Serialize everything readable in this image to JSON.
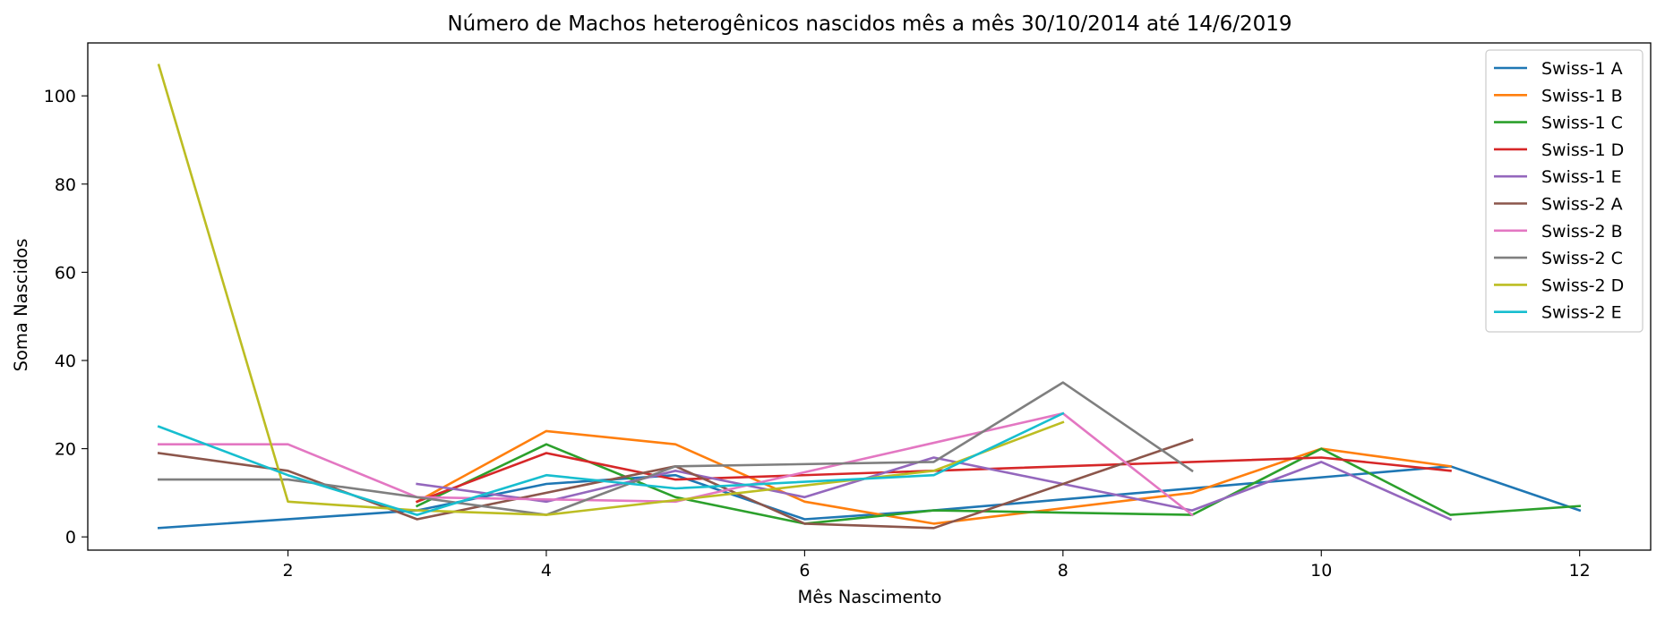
{
  "chart_data": {
    "type": "line",
    "title": "Número de Machos heterogênicos nascidos mês a mês 30/10/2014 até 14/6/2019",
    "xlabel": "Mês Nascimento",
    "ylabel": "Soma Nascidos",
    "xlim": [
      0.45,
      12.55
    ],
    "ylim": [
      -3,
      112
    ],
    "xticks": [
      2,
      4,
      6,
      8,
      10,
      12
    ],
    "yticks": [
      0,
      20,
      40,
      60,
      80,
      100
    ],
    "grid": false,
    "legend_position": "upper-right",
    "series": [
      {
        "name": "Swiss-1 A",
        "color": "#1f77b4",
        "points": [
          [
            1,
            2
          ],
          [
            3,
            6
          ],
          [
            4,
            12
          ],
          [
            5,
            14
          ],
          [
            6,
            4
          ],
          [
            7,
            6
          ],
          [
            11,
            16
          ],
          [
            12,
            6
          ]
        ]
      },
      {
        "name": "Swiss-1 B",
        "color": "#ff7f0e",
        "points": [
          [
            3,
            8
          ],
          [
            4,
            24
          ],
          [
            5,
            21
          ],
          [
            6,
            8
          ],
          [
            7,
            3
          ],
          [
            9,
            10
          ],
          [
            10,
            20
          ],
          [
            11,
            16
          ]
        ]
      },
      {
        "name": "Swiss-1 C",
        "color": "#2ca02c",
        "points": [
          [
            3,
            7
          ],
          [
            4,
            21
          ],
          [
            5,
            9
          ],
          [
            6,
            3
          ],
          [
            7,
            6
          ],
          [
            9,
            5
          ],
          [
            10,
            20
          ],
          [
            11,
            5
          ],
          [
            12,
            7
          ]
        ]
      },
      {
        "name": "Swiss-1 D",
        "color": "#d62728",
        "points": [
          [
            3,
            8
          ],
          [
            4,
            19
          ],
          [
            5,
            13
          ],
          [
            10,
            18
          ],
          [
            11,
            15
          ]
        ]
      },
      {
        "name": "Swiss-1 E",
        "color": "#9467bd",
        "points": [
          [
            3,
            12
          ],
          [
            4,
            8
          ],
          [
            5,
            15
          ],
          [
            6,
            9
          ],
          [
            7,
            18
          ],
          [
            9,
            6
          ],
          [
            10,
            17
          ],
          [
            11,
            4
          ]
        ]
      },
      {
        "name": "Swiss-2 A",
        "color": "#8c564b",
        "points": [
          [
            1,
            19
          ],
          [
            2,
            15
          ],
          [
            3,
            4
          ],
          [
            5,
            16
          ],
          [
            6,
            3
          ],
          [
            7,
            2
          ],
          [
            9,
            22
          ]
        ]
      },
      {
        "name": "Swiss-2 B",
        "color": "#e377c2",
        "points": [
          [
            1,
            21
          ],
          [
            2,
            21
          ],
          [
            3,
            9
          ],
          [
            5,
            8
          ],
          [
            8,
            28
          ],
          [
            9,
            5
          ]
        ]
      },
      {
        "name": "Swiss-2 C",
        "color": "#7f7f7f",
        "points": [
          [
            1,
            13
          ],
          [
            2,
            13
          ],
          [
            4,
            5
          ],
          [
            5,
            16
          ],
          [
            7,
            17
          ],
          [
            8,
            35
          ],
          [
            9,
            15
          ]
        ]
      },
      {
        "name": "Swiss-2 D",
        "color": "#bcbd22",
        "points": [
          [
            1,
            107
          ],
          [
            2,
            8
          ],
          [
            3,
            6
          ],
          [
            4,
            5
          ],
          [
            7,
            15
          ],
          [
            8,
            26
          ]
        ]
      },
      {
        "name": "Swiss-2 E",
        "color": "#17becf",
        "points": [
          [
            1,
            25
          ],
          [
            2,
            14
          ],
          [
            3,
            5
          ],
          [
            4,
            14
          ],
          [
            5,
            11
          ],
          [
            7,
            14
          ],
          [
            8,
            28
          ]
        ]
      }
    ]
  }
}
